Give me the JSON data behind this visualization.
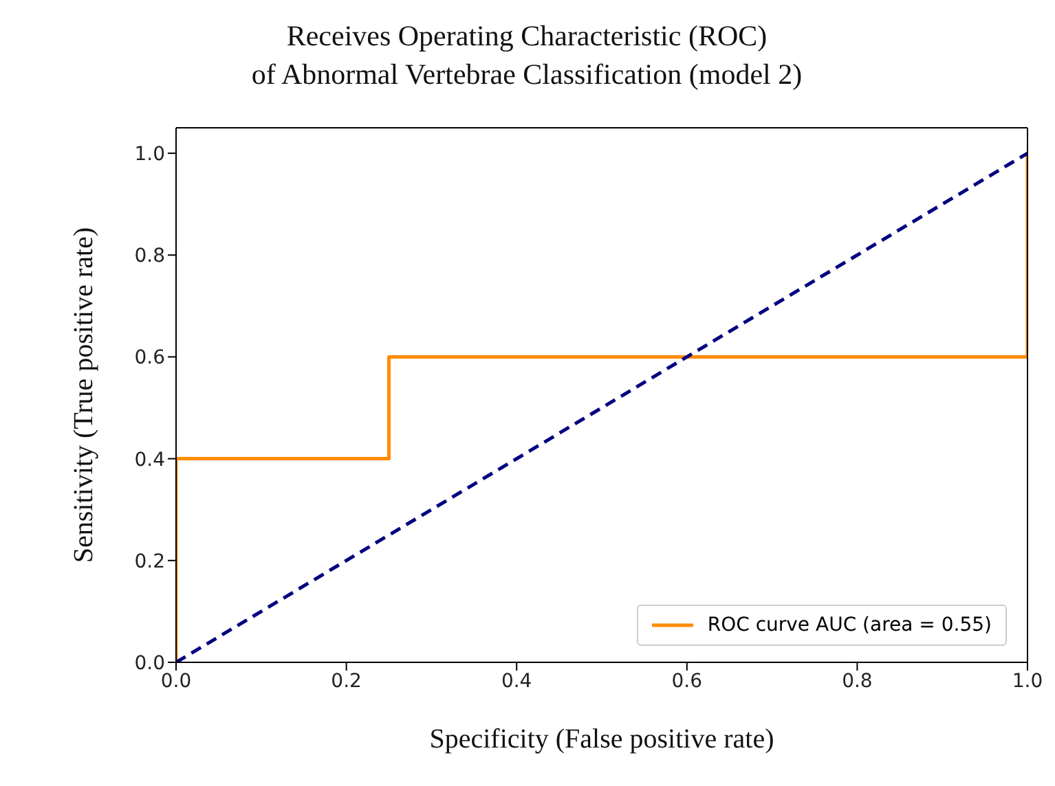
{
  "chart_data": {
    "type": "line",
    "title": "Receives Operating Characteristic (ROC)\nof Abnormal Vertebrae Classification (model 2)",
    "xlabel": "Specificity (False positive rate)",
    "ylabel": "Sensitivity (True positive rate)",
    "xlim": [
      0,
      1
    ],
    "ylim": [
      0,
      1.05
    ],
    "xticks": [
      {
        "value": 0,
        "label": "0.0"
      },
      {
        "value": 0.2,
        "label": "0.2"
      },
      {
        "value": 0.4,
        "label": "0.4"
      },
      {
        "value": 0.6,
        "label": "0.6"
      },
      {
        "value": 0.8,
        "label": "0.8"
      },
      {
        "value": 1,
        "label": "1.0"
      }
    ],
    "yticks": [
      {
        "value": 0,
        "label": "0.0"
      },
      {
        "value": 0.2,
        "label": "0.2"
      },
      {
        "value": 0.4,
        "label": "0.4"
      },
      {
        "value": 0.6,
        "label": "0.6"
      },
      {
        "value": 0.8,
        "label": "0.8"
      },
      {
        "value": 1,
        "label": "1.0"
      }
    ],
    "legend": "bottom right",
    "marker": "none",
    "series": [
      {
        "name": "ROC curve AUC (area = 0.55)",
        "color": "#ff8c00",
        "line_style": "solid",
        "x": [
          0,
          0,
          0.25,
          0.25,
          1,
          1
        ],
        "values": [
          0,
          0.4,
          0.4,
          0.6,
          0.6,
          1
        ]
      },
      {
        "color": "#000080",
        "line_style": "dashed",
        "x": [
          0,
          1
        ],
        "values": [
          0,
          1
        ]
      }
    ]
  }
}
